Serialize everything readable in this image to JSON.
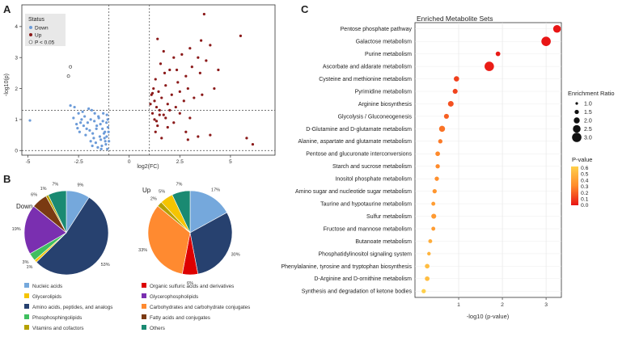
{
  "panel_labels": {
    "a": "A",
    "b": "B",
    "c": "C"
  },
  "colors": {
    "down": "#6c9bd8",
    "up": "#8b1a1a",
    "ns": "#ffffff",
    "nucleic": "#75a8dc",
    "glycerolipids": "#f5c400",
    "amino": "#27416f",
    "phosphosphingo": "#3fbf5f",
    "vitamins": "#b5a100",
    "organic_sulfuric": "#dd0000",
    "glycerophospholipids": "#7a2fb0",
    "carbohydrates": "#ff8a30",
    "fatty": "#7a3a12",
    "others": "#1a8a72"
  },
  "chart_data": [
    {
      "id": "volcano",
      "type": "scatter",
      "title": "",
      "xlabel": "log2(FC)",
      "ylabel": "-log10(p)",
      "xlim": [
        -5.3,
        7.2
      ],
      "ylim": [
        -0.15,
        4.7
      ],
      "xticks": [
        -5,
        -2.5,
        0,
        2.5,
        5
      ],
      "xtick_labels": [
        "-5",
        "-2.5",
        "0",
        "2.5",
        "5"
      ],
      "yticks": [
        0,
        1,
        2,
        3,
        4
      ],
      "ytick_labels": [
        "0",
        "1",
        "2",
        "3",
        "4"
      ],
      "thresholds": {
        "fc_left": -1,
        "fc_right": 1,
        "p_line": 1.3
      },
      "legend": {
        "title": "Status",
        "items": [
          "Down",
          "Up",
          "P < 0.05"
        ],
        "position": "top-left"
      },
      "series": [
        {
          "name": "Down",
          "points": [
            [
              -4.9,
              0.97
            ],
            [
              -2.9,
              1.45
            ],
            [
              -2.7,
              1.4
            ],
            [
              -2.5,
              1.2
            ],
            [
              -2.4,
              0.9
            ],
            [
              -2.3,
              1.25
            ],
            [
              -2.2,
              1.1
            ],
            [
              -2.1,
              0.7
            ],
            [
              -2.0,
              1.35
            ],
            [
              -1.9,
              1.0
            ],
            [
              -1.8,
              0.55
            ],
            [
              -1.7,
              1.2
            ],
            [
              -1.6,
              0.8
            ],
            [
              -1.5,
              1.05
            ],
            [
              -1.4,
              0.35
            ],
            [
              -1.3,
              0.95
            ],
            [
              -1.2,
              0.6
            ],
            [
              -1.1,
              1.15
            ],
            [
              -1.0,
              0.3
            ],
            [
              -2.6,
              0.85
            ],
            [
              -1.95,
              0.65
            ],
            [
              -1.45,
              0.45
            ],
            [
              -1.15,
              0.2
            ],
            [
              -1.05,
              0.75
            ],
            [
              -2.15,
              0.5
            ],
            [
              -1.65,
              0.25
            ],
            [
              -1.35,
              0.15
            ],
            [
              -1.85,
              1.3
            ],
            [
              -1.25,
              0.55
            ],
            [
              -2.45,
              0.6
            ],
            [
              -1.75,
              0.4
            ],
            [
              -1.55,
              0.1
            ],
            [
              -1.08,
              0.05
            ],
            [
              -2.35,
              1.0
            ],
            [
              -2.05,
              0.9
            ],
            [
              -1.62,
              0.7
            ],
            [
              -1.42,
              0.85
            ],
            [
              -1.22,
              0.4
            ],
            [
              -1.12,
              0.9
            ],
            [
              -1.02,
              0.6
            ],
            [
              -2.75,
              1.05
            ],
            [
              -2.25,
              0.8
            ],
            [
              -1.9,
              0.3
            ],
            [
              -1.52,
              1.1
            ],
            [
              -1.32,
              0.7
            ],
            [
              -1.18,
              0.3
            ],
            [
              -1.06,
              1.0
            ],
            [
              -1.72,
              0.95
            ],
            [
              -1.28,
              1.2
            ],
            [
              -2.55,
              0.72
            ],
            [
              -1.82,
              0.15
            ],
            [
              -1.38,
              0.05
            ],
            [
              -1.11,
              0.45
            ]
          ]
        },
        {
          "name": "Up",
          "points": [
            [
              1.05,
              1.5
            ],
            [
              1.1,
              1.8
            ],
            [
              1.15,
              1.2
            ],
            [
              1.2,
              2.0
            ],
            [
              1.25,
              1.6
            ],
            [
              1.3,
              2.3
            ],
            [
              1.35,
              1.4
            ],
            [
              1.4,
              3.6
            ],
            [
              1.45,
              1.9
            ],
            [
              1.5,
              1.3
            ],
            [
              1.55,
              2.8
            ],
            [
              1.6,
              1.7
            ],
            [
              1.7,
              3.2
            ],
            [
              1.8,
              2.1
            ],
            [
              1.9,
              1.5
            ],
            [
              2.0,
              2.6
            ],
            [
              2.1,
              1.8
            ],
            [
              2.2,
              3.0
            ],
            [
              2.3,
              1.4
            ],
            [
              2.4,
              2.2
            ],
            [
              2.5,
              1.9
            ],
            [
              2.6,
              3.1
            ],
            [
              2.7,
              1.6
            ],
            [
              2.8,
              2.4
            ],
            [
              2.9,
              2.0
            ],
            [
              3.0,
              3.3
            ],
            [
              3.1,
              2.7
            ],
            [
              3.2,
              1.7
            ],
            [
              3.4,
              3.0
            ],
            [
              3.5,
              2.5
            ],
            [
              3.6,
              1.8
            ],
            [
              3.8,
              2.9
            ],
            [
              4.0,
              3.4
            ],
            [
              4.2,
              2.0
            ],
            [
              1.25,
              1.0
            ],
            [
              1.4,
              0.8
            ],
            [
              1.5,
              1.15
            ],
            [
              1.8,
              1.05
            ],
            [
              2.0,
              1.3
            ],
            [
              2.2,
              0.9
            ],
            [
              2.5,
              1.2
            ],
            [
              3.0,
              1.05
            ],
            [
              3.4,
              0.45
            ],
            [
              4.0,
              0.5
            ],
            [
              1.3,
              0.6
            ],
            [
              1.6,
              0.4
            ],
            [
              1.9,
              0.75
            ],
            [
              2.8,
              0.6
            ],
            [
              2.9,
              0.35
            ],
            [
              1.15,
              1.85
            ],
            [
              1.75,
              2.5
            ],
            [
              2.35,
              2.6
            ],
            [
              3.7,
              4.4
            ],
            [
              3.55,
              3.55
            ],
            [
              4.4,
              2.6
            ],
            [
              5.5,
              3.7
            ],
            [
              5.8,
              0.4
            ],
            [
              6.1,
              0.2
            ],
            [
              1.35,
              0.95
            ],
            [
              1.7,
              1.15
            ]
          ]
        },
        {
          "name": "P < 0.05",
          "points": [
            [
              -3.0,
              2.4
            ],
            [
              -2.9,
              2.7
            ]
          ]
        }
      ]
    },
    {
      "id": "pie-down",
      "type": "pie",
      "title": "Down",
      "categories": [
        "Nucleic acids",
        "Amino acids, peptides, and analogs",
        "Glycerolipids",
        "Phosphosphingolipids",
        "Glycerophospholipids",
        "Fatty acids and conjugates",
        "Vitamins and cofactors",
        "Others"
      ],
      "values": [
        9,
        53,
        1,
        3,
        19,
        6,
        1,
        7
      ],
      "labels": [
        "9%",
        "53%",
        "1%",
        "3%",
        "19%",
        "6%",
        "1%",
        "7%"
      ]
    },
    {
      "id": "pie-up",
      "type": "pie",
      "title": "Up",
      "categories": [
        "Nucleic acids",
        "Amino acids, peptides, and analogs",
        "Organic sulfuric acids and derivatives",
        "Carbohydrates and carbohydrate conjugates",
        "Vitamins and cofactors",
        "Glycerolipids",
        "Others"
      ],
      "values": [
        17,
        30,
        6,
        33,
        2,
        5,
        7
      ],
      "labels": [
        "17%",
        "30%",
        "6%",
        "33%",
        "2%",
        "5%",
        "7%"
      ]
    },
    {
      "id": "enrichment",
      "type": "scatter",
      "title": "Enriched Metabolite Sets",
      "xlabel": "-log10 (p-value)",
      "xlim": [
        0,
        3.35
      ],
      "xticks": [
        1,
        2,
        3
      ],
      "xtick_labels": [
        "1",
        "2",
        "3"
      ],
      "categories": [
        "Pentose phosphate pathway",
        "Galactose metabolism",
        "Purine metabolism",
        "Ascorbate and aldarate metabolism",
        "Cysteine and methionine metabolism",
        "Pyrimidine metabolism",
        "Arginine biosynthesis",
        "Glycolysis / Gluconeogenesis",
        "D-Glutamine and D-glutamate metabolism",
        "Alanine, aspartate and glutamate metabolism",
        "Pentose and glucuronate interconversions",
        "Starch and sucrose metabolism",
        "Inositol phosphate metabolism",
        "Amino sugar and nucleotide sugar metabolism",
        "Taurine and hypotaurine metabolism",
        "Sulfur metabolism",
        "Fructose and mannose metabolism",
        "Butanoate metabolism",
        "Phosphatidylinositol signaling system",
        "Phenylalanine, tyrosine and tryptophan biosynthesis",
        "D-Arginine and D-ornithine metabolism",
        "Synthesis and degradation of ketone bodies"
      ],
      "neglog10p": [
        3.25,
        3.0,
        1.9,
        1.7,
        0.95,
        0.92,
        0.82,
        0.72,
        0.62,
        0.58,
        0.52,
        0.52,
        0.5,
        0.45,
        0.42,
        0.43,
        0.42,
        0.35,
        0.32,
        0.28,
        0.28,
        0.2
      ],
      "pvalues": [
        0.0006,
        0.001,
        0.013,
        0.02,
        0.11,
        0.12,
        0.15,
        0.19,
        0.24,
        0.26,
        0.3,
        0.3,
        0.32,
        0.35,
        0.38,
        0.37,
        0.38,
        0.45,
        0.48,
        0.52,
        0.52,
        0.6
      ],
      "enrichment_ratio": [
        2.5,
        3.0,
        1.6,
        3.0,
        1.8,
        1.7,
        1.9,
        1.7,
        2.0,
        1.5,
        1.6,
        1.5,
        1.5,
        1.5,
        1.4,
        1.7,
        1.4,
        1.4,
        1.3,
        1.6,
        1.6,
        1.5
      ],
      "size_legend": {
        "title": "Enrichment Ratio",
        "values": [
          1.0,
          1.5,
          2.0,
          2.5,
          3.0
        ],
        "labels": [
          "1.0",
          "1.5",
          "2.0",
          "2.5",
          "3.0"
        ]
      },
      "color_legend": {
        "title": "P-value",
        "values": [
          0.6,
          0.5,
          0.4,
          0.3,
          0.2,
          0.1,
          0.0
        ],
        "labels": [
          "0.6",
          "0.5",
          "0.4",
          "0.3",
          "0.2",
          "0.1",
          "0.0"
        ]
      }
    }
  ],
  "pie_legend": {
    "items": [
      {
        "label": "Nucleic acids",
        "color": "#75a8dc"
      },
      {
        "label": "Organic sulfuric acids and derivatives",
        "color": "#dd0000"
      },
      {
        "label": "Glycerolipids",
        "color": "#f5c400"
      },
      {
        "label": "Glycerophospholipids",
        "color": "#7a2fb0"
      },
      {
        "label": "Amino acids, peptides, and analogs",
        "color": "#27416f"
      },
      {
        "label": "Carbohydrates and carbohydrate conjugates",
        "color": "#ff8a30"
      },
      {
        "label": "Phosphosphingolipids",
        "color": "#3fbf5f"
      },
      {
        "label": "Fatty acids and conjugates",
        "color": "#7a3a12"
      },
      {
        "label": "Vitamins and cofactors",
        "color": "#b5a100"
      },
      {
        "label": "Others",
        "color": "#1a8a72"
      }
    ]
  }
}
